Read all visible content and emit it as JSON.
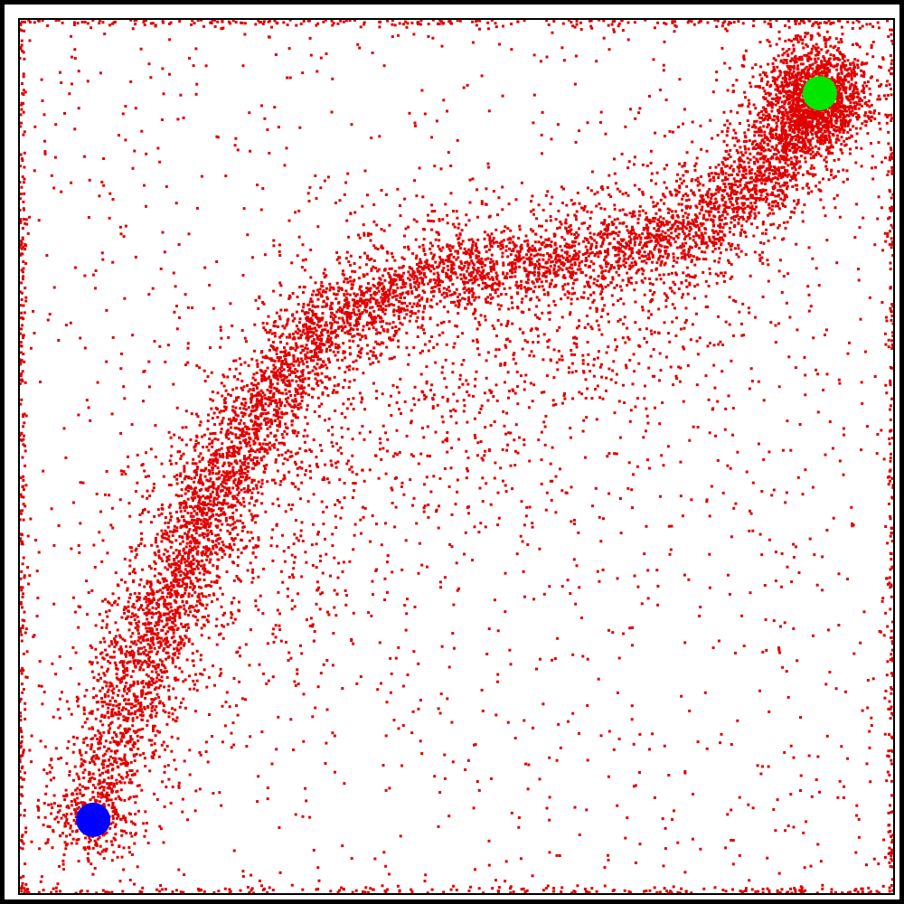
{
  "chart_data": {
    "type": "scatter",
    "title": "",
    "xlabel": "",
    "ylabel": "",
    "xlim": [
      0,
      1
    ],
    "ylim": [
      0,
      1
    ],
    "grid": false,
    "legend": "none",
    "point_color": "#e00000",
    "start_marker": {
      "x": 0.084,
      "y": 0.084,
      "color": "#0000ff"
    },
    "goal_marker": {
      "x": 0.916,
      "y": 0.916,
      "color": "#00e600"
    },
    "density_bands": [
      {
        "x": 0.084,
        "y": 0.084,
        "weight": 0.0
      },
      {
        "x": 0.12,
        "y": 0.2,
        "weight": 0.9
      },
      {
        "x": 0.17,
        "y": 0.33,
        "weight": 1.0
      },
      {
        "x": 0.22,
        "y": 0.45,
        "weight": 1.0
      },
      {
        "x": 0.28,
        "y": 0.56,
        "weight": 0.9
      },
      {
        "x": 0.35,
        "y": 0.65,
        "weight": 0.8
      },
      {
        "x": 0.44,
        "y": 0.7,
        "weight": 0.75
      },
      {
        "x": 0.55,
        "y": 0.72,
        "weight": 0.7
      },
      {
        "x": 0.66,
        "y": 0.73,
        "weight": 0.7
      },
      {
        "x": 0.77,
        "y": 0.76,
        "weight": 0.7
      },
      {
        "x": 0.85,
        "y": 0.82,
        "weight": 0.8
      },
      {
        "x": 0.9,
        "y": 0.89,
        "weight": 0.9
      },
      {
        "x": 0.916,
        "y": 0.916,
        "weight": 1.0
      }
    ]
  }
}
